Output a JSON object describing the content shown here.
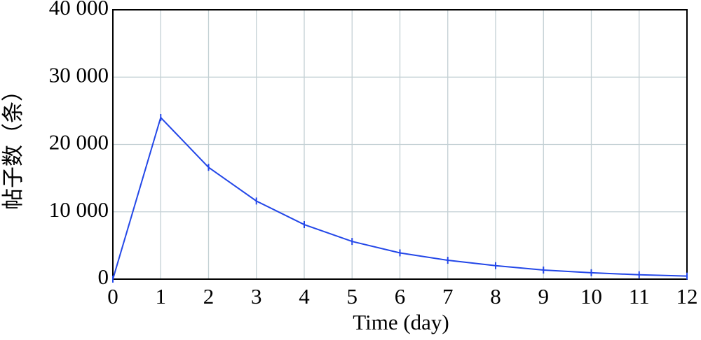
{
  "chart_data": {
    "type": "line",
    "x_label": "Time (day)",
    "y_label": "帖子数（条）",
    "x": [
      0,
      1,
      2,
      3,
      4,
      5,
      6,
      7,
      8,
      9,
      10,
      11,
      12
    ],
    "series": [
      {
        "color": "#2347e8",
        "values": [
          0,
          24000,
          16600,
          11600,
          8100,
          5600,
          3900,
          2800,
          2000,
          1350,
          950,
          650,
          450
        ]
      }
    ],
    "xlim": [
      0,
      12
    ],
    "xticks": [
      0,
      1,
      2,
      3,
      4,
      5,
      6,
      7,
      8,
      9,
      10,
      11,
      12
    ],
    "ylim": [
      0,
      40000
    ],
    "yticks": [
      0,
      {
        "value": 10000,
        "label": "10 000"
      },
      {
        "value": 20000,
        "label": "20 000"
      },
      {
        "value": 30000,
        "label": "30 000"
      },
      {
        "value": 40000,
        "label": "40 000"
      }
    ],
    "grid": true
  }
}
